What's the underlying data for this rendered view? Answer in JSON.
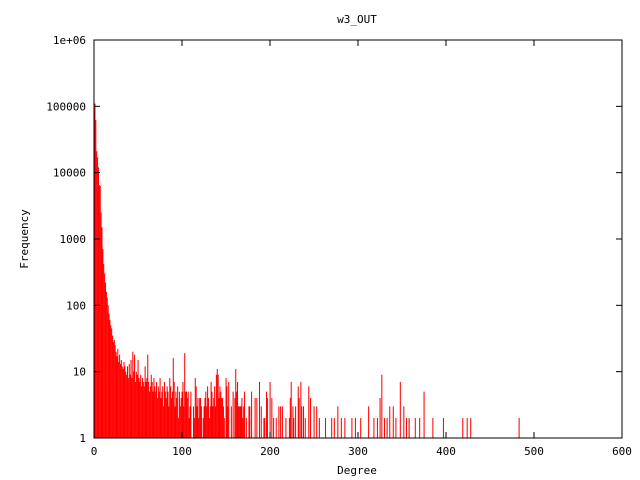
{
  "chart_data": {
    "type": "bar",
    "title": "w3_OUT",
    "xlabel": "Degree",
    "ylabel": "Frequency",
    "xlim": [
      0,
      600
    ],
    "ylim": [
      1,
      1000000
    ],
    "yscale": "log",
    "grid": false,
    "bar_color": "#ff0000",
    "xticks": [
      "0",
      "100",
      "200",
      "300",
      "400",
      "500",
      "600"
    ],
    "yticks": [
      "1",
      "10",
      "100",
      "1000",
      "10000",
      "100000",
      "1e+06"
    ],
    "points": [
      [
        1,
        110000
      ],
      [
        2,
        62000
      ],
      [
        3,
        21000
      ],
      [
        4,
        17000
      ],
      [
        5,
        12000
      ],
      [
        6,
        6500
      ],
      [
        7,
        6300
      ],
      [
        8,
        2500
      ],
      [
        9,
        1500
      ],
      [
        10,
        700
      ],
      [
        11,
        420
      ],
      [
        12,
        300
      ],
      [
        13,
        220
      ],
      [
        14,
        160
      ],
      [
        15,
        130
      ],
      [
        16,
        100
      ],
      [
        17,
        75
      ],
      [
        18,
        60
      ],
      [
        19,
        50
      ],
      [
        20,
        45
      ],
      [
        21,
        35
      ],
      [
        22,
        28
      ],
      [
        23,
        30
      ],
      [
        24,
        25
      ],
      [
        25,
        20
      ],
      [
        26,
        17
      ],
      [
        27,
        22
      ],
      [
        28,
        14
      ],
      [
        29,
        18
      ],
      [
        30,
        13
      ],
      [
        31,
        15
      ],
      [
        32,
        12
      ],
      [
        33,
        11
      ],
      [
        34,
        14
      ],
      [
        35,
        12
      ],
      [
        36,
        10
      ],
      [
        37,
        9
      ],
      [
        38,
        12
      ],
      [
        39,
        8
      ],
      [
        40,
        13
      ],
      [
        41,
        9
      ],
      [
        42,
        15
      ],
      [
        43,
        8
      ],
      [
        44,
        20
      ],
      [
        45,
        10
      ],
      [
        46,
        18
      ],
      [
        47,
        7
      ],
      [
        48,
        10
      ],
      [
        49,
        9
      ],
      [
        50,
        15
      ],
      [
        51,
        8
      ],
      [
        52,
        7
      ],
      [
        53,
        9
      ],
      [
        54,
        6
      ],
      [
        55,
        8
      ],
      [
        56,
        7
      ],
      [
        57,
        6
      ],
      [
        58,
        12
      ],
      [
        59,
        7
      ],
      [
        60,
        8
      ],
      [
        61,
        18
      ],
      [
        62,
        7
      ],
      [
        63,
        5
      ],
      [
        64,
        6
      ],
      [
        65,
        9
      ],
      [
        66,
        7
      ],
      [
        67,
        5
      ],
      [
        68,
        8
      ],
      [
        69,
        6
      ],
      [
        70,
        5
      ],
      [
        71,
        7
      ],
      [
        72,
        4
      ],
      [
        73,
        6
      ],
      [
        74,
        5
      ],
      [
        75,
        8
      ],
      [
        76,
        4
      ],
      [
        77,
        5
      ],
      [
        78,
        6
      ],
      [
        79,
        3
      ],
      [
        80,
        7
      ],
      [
        81,
        5
      ],
      [
        82,
        4
      ],
      [
        83,
        6
      ],
      [
        84,
        5
      ],
      [
        85,
        3
      ],
      [
        86,
        8
      ],
      [
        87,
        6
      ],
      [
        88,
        4
      ],
      [
        89,
        5
      ],
      [
        90,
        16
      ],
      [
        91,
        7
      ],
      [
        92,
        3
      ],
      [
        93,
        5
      ],
      [
        94,
        4
      ],
      [
        95,
        6
      ],
      [
        96,
        2
      ],
      [
        97,
        5
      ],
      [
        98,
        3
      ],
      [
        99,
        4
      ],
      [
        100,
        5
      ],
      [
        101,
        7
      ],
      [
        102,
        3
      ],
      [
        103,
        19
      ],
      [
        104,
        5
      ],
      [
        105,
        5
      ],
      [
        106,
        4
      ],
      [
        107,
        5
      ],
      [
        108,
        2
      ],
      [
        109,
        3
      ],
      [
        110,
        5
      ],
      [
        113,
        3
      ],
      [
        114,
        2
      ],
      [
        115,
        8
      ],
      [
        116,
        6
      ],
      [
        117,
        3
      ],
      [
        118,
        4
      ],
      [
        119,
        2
      ],
      [
        120,
        4
      ],
      [
        121,
        4
      ],
      [
        122,
        3
      ],
      [
        124,
        2
      ],
      [
        125,
        3
      ],
      [
        126,
        4
      ],
      [
        127,
        5
      ],
      [
        128,
        3
      ],
      [
        129,
        6
      ],
      [
        130,
        4
      ],
      [
        131,
        2
      ],
      [
        132,
        3
      ],
      [
        133,
        7
      ],
      [
        134,
        5
      ],
      [
        135,
        3
      ],
      [
        136,
        4
      ],
      [
        137,
        6
      ],
      [
        138,
        3
      ],
      [
        139,
        9
      ],
      [
        140,
        11
      ],
      [
        141,
        9
      ],
      [
        142,
        4
      ],
      [
        143,
        6
      ],
      [
        144,
        5
      ],
      [
        145,
        4
      ],
      [
        146,
        4
      ],
      [
        147,
        3
      ],
      [
        148,
        2
      ],
      [
        150,
        8
      ],
      [
        151,
        6
      ],
      [
        152,
        3
      ],
      [
        153,
        7
      ],
      [
        156,
        3
      ],
      [
        158,
        5
      ],
      [
        160,
        4
      ],
      [
        161,
        11
      ],
      [
        162,
        5
      ],
      [
        163,
        7
      ],
      [
        164,
        3
      ],
      [
        165,
        3
      ],
      [
        166,
        3
      ],
      [
        167,
        3
      ],
      [
        168,
        4
      ],
      [
        169,
        2
      ],
      [
        170,
        3
      ],
      [
        171,
        5
      ],
      [
        173,
        2
      ],
      [
        176,
        3
      ],
      [
        177,
        3
      ],
      [
        179,
        5
      ],
      [
        183,
        4
      ],
      [
        185,
        4
      ],
      [
        188,
        7
      ],
      [
        190,
        3
      ],
      [
        193,
        2
      ],
      [
        194,
        2
      ],
      [
        196,
        5
      ],
      [
        197,
        4
      ],
      [
        200,
        7
      ],
      [
        202,
        4
      ],
      [
        204,
        2
      ],
      [
        207,
        2
      ],
      [
        210,
        3
      ],
      [
        212,
        3
      ],
      [
        214,
        3
      ],
      [
        218,
        2
      ],
      [
        222,
        2
      ],
      [
        223,
        4
      ],
      [
        224,
        7
      ],
      [
        226,
        3
      ],
      [
        227,
        2
      ],
      [
        229,
        3
      ],
      [
        232,
        6
      ],
      [
        233,
        4
      ],
      [
        235,
        7
      ],
      [
        236,
        3
      ],
      [
        238,
        3
      ],
      [
        240,
        2
      ],
      [
        244,
        6
      ],
      [
        246,
        4
      ],
      [
        250,
        3
      ],
      [
        253,
        3
      ],
      [
        256,
        2
      ],
      [
        263,
        2
      ],
      [
        270,
        2
      ],
      [
        273,
        2
      ],
      [
        277,
        3
      ],
      [
        281,
        2
      ],
      [
        285,
        2
      ],
      [
        293,
        2
      ],
      [
        297,
        2
      ],
      [
        303,
        2
      ],
      [
        312,
        3
      ],
      [
        318,
        2
      ],
      [
        322,
        2
      ],
      [
        325,
        4
      ],
      [
        327,
        9
      ],
      [
        330,
        2
      ],
      [
        333,
        2
      ],
      [
        336,
        3
      ],
      [
        340,
        3
      ],
      [
        343,
        2
      ],
      [
        348,
        7
      ],
      [
        352,
        3
      ],
      [
        355,
        2
      ],
      [
        358,
        2
      ],
      [
        365,
        2
      ],
      [
        370,
        2
      ],
      [
        375,
        5
      ],
      [
        385,
        2
      ],
      [
        397,
        2
      ],
      [
        419,
        2
      ],
      [
        424,
        2
      ],
      [
        428,
        2
      ],
      [
        483,
        2
      ]
    ]
  }
}
